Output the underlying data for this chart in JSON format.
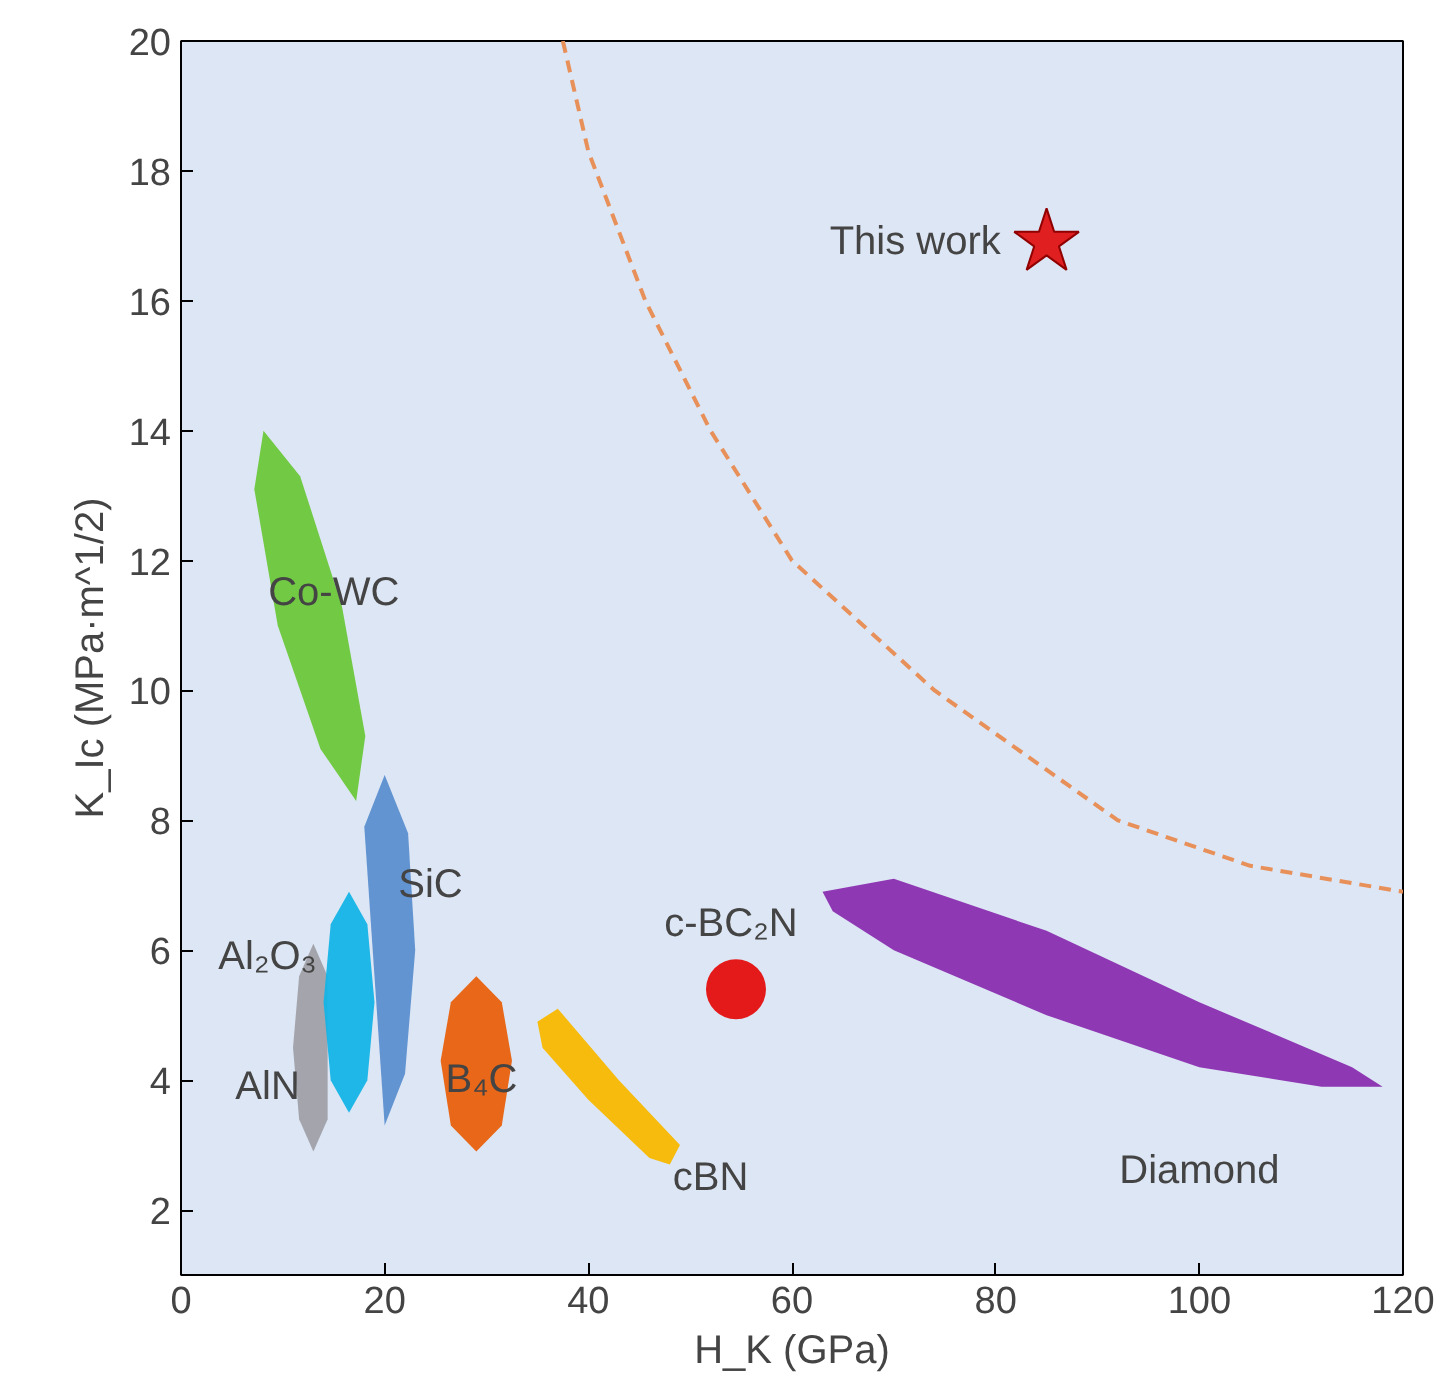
{
  "chart_data": {
    "type": "scatter",
    "xlabel": "H_K (GPa)",
    "ylabel": "K_Ic (MPa·m^1/2)",
    "xlim": [
      0,
      120
    ],
    "ylim": [
      1,
      20
    ],
    "xticks": [
      0,
      20,
      40,
      60,
      80,
      100,
      120
    ],
    "yticks": [
      2,
      4,
      6,
      8,
      10,
      12,
      14,
      16,
      18,
      20
    ],
    "grid": false,
    "series": [
      {
        "type": "line",
        "line_style": "dashed",
        "marker": "none",
        "color": "#e8905a",
        "x": [
          37.5,
          40,
          45.6,
          52,
          60,
          74,
          92,
          105,
          120
        ],
        "values": [
          20,
          18.3,
          16,
          14,
          12,
          10,
          8,
          7.3,
          6.9
        ]
      },
      {
        "type": "area",
        "color": "#6cc83a",
        "x": [
          17.2,
          18.1,
          15.8,
          11.7,
          8.1,
          7.2,
          9.5,
          13.7
        ],
        "values": [
          8.3,
          9.3,
          11.3,
          13.3,
          14,
          13.1,
          11,
          9.1
        ]
      },
      {
        "type": "area",
        "color": "#5b8fd0",
        "x": [
          20,
          22.3,
          23,
          22,
          20,
          null,
          null,
          18
        ],
        "values": [
          8.7,
          7.8,
          6,
          4.1,
          3.3,
          null,
          null,
          7.9
        ]
      },
      {
        "type": "area",
        "color": "#a0a0a8",
        "x": [
          13,
          14.4,
          null,
          14.4,
          13,
          11.6,
          11,
          11.6
        ],
        "values": [
          6.1,
          5.6,
          null,
          3.4,
          2.9,
          3.4,
          4.5,
          5.6
        ]
      },
      {
        "type": "area",
        "color": "#14b4e6",
        "x": [
          16.5,
          18.3,
          19,
          18.3,
          16.5,
          14.7,
          14,
          14.7
        ],
        "values": [
          6.9,
          6.4,
          5.2,
          4,
          3.5,
          4,
          5.2,
          6.4
        ]
      },
      {
        "type": "area",
        "color": "#e8600c",
        "x": [
          29,
          31.5,
          32.5,
          31.5,
          29,
          26.5,
          25.5,
          26.5
        ],
        "values": [
          5.6,
          5.2,
          4.3,
          3.3,
          2.9,
          3.3,
          4.3,
          5.2
        ]
      },
      {
        "type": "area",
        "color": "#f8b800",
        "x": [
          35,
          37,
          43,
          49,
          48,
          46,
          40,
          35.5
        ],
        "values": [
          4.9,
          5.1,
          4,
          3,
          2.7,
          2.8,
          3.7,
          4.5
        ]
      },
      {
        "type": "area",
        "color": "#8a2eb0",
        "x": [
          63,
          70,
          85,
          100,
          115,
          118,
          112,
          100,
          85,
          70,
          64
        ],
        "values": [
          6.9,
          7.1,
          6.3,
          5.2,
          4.2,
          3.9,
          3.9,
          4.2,
          5,
          6,
          6.6
        ]
      },
      {
        "marker": "circle",
        "color": "#e41a1a",
        "x": [
          54.5
        ],
        "values": [
          5.4
        ]
      },
      {
        "marker": "star",
        "color": "#e02020",
        "x": [
          85
        ],
        "values": [
          16.9
        ]
      }
    ],
    "annotations": [
      "This work",
      "Co-WC",
      "SiC",
      "Al₂O₃",
      "AlN",
      "B₄C",
      "cBN",
      "c-BC₂N",
      "Diamond"
    ]
  }
}
